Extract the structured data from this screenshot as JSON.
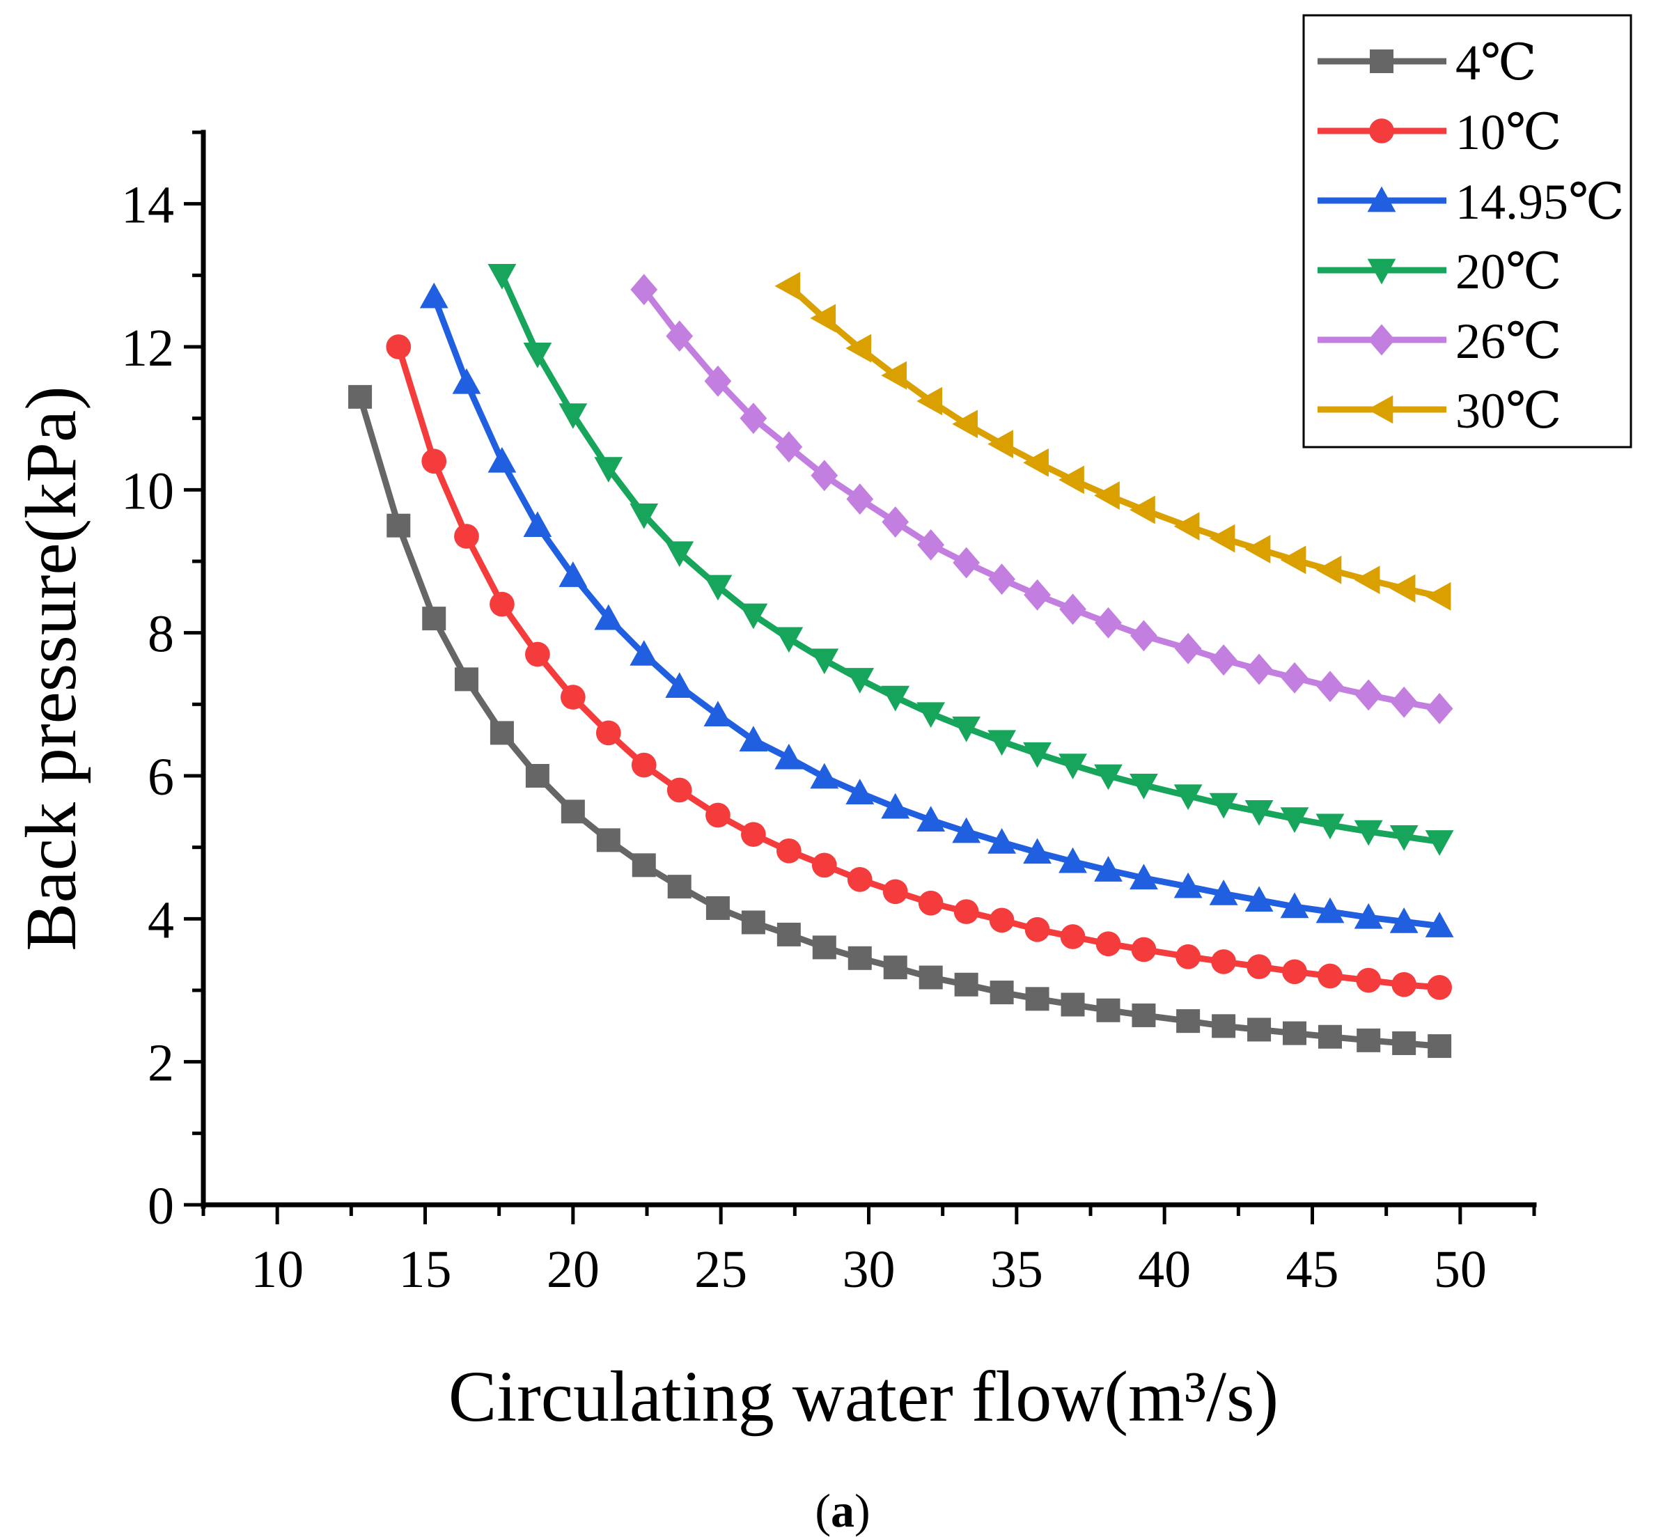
{
  "caption": {
    "open": "(",
    "letter": "a",
    "close": ")"
  },
  "chart_data": {
    "type": "line",
    "title": "",
    "xlabel": "Circulating water flow(m³/s)",
    "ylabel": "Back pressure(kPa)",
    "xlim": [
      7.5,
      52.5
    ],
    "ylim": [
      0,
      15
    ],
    "x_ticks": [
      10,
      15,
      20,
      25,
      30,
      35,
      40,
      45,
      50
    ],
    "y_ticks": [
      0,
      2,
      4,
      6,
      8,
      10,
      12,
      14
    ],
    "grid": false,
    "legend_position": "top-right",
    "series": [
      {
        "name": "4℃",
        "color": "#666666",
        "marker": "square",
        "points": [
          [
            12.8,
            11.3
          ],
          [
            14.1,
            9.5
          ],
          [
            15.3,
            8.2
          ],
          [
            16.4,
            7.35
          ],
          [
            17.6,
            6.6
          ],
          [
            18.8,
            6.0
          ],
          [
            20.0,
            5.5
          ],
          [
            21.2,
            5.1
          ],
          [
            22.4,
            4.75
          ],
          [
            23.6,
            4.45
          ],
          [
            24.9,
            4.15
          ],
          [
            26.1,
            3.95
          ],
          [
            27.3,
            3.78
          ],
          [
            28.5,
            3.6
          ],
          [
            29.7,
            3.45
          ],
          [
            30.9,
            3.32
          ],
          [
            32.1,
            3.18
          ],
          [
            33.3,
            3.08
          ],
          [
            34.5,
            2.97
          ],
          [
            35.7,
            2.88
          ],
          [
            36.9,
            2.8
          ],
          [
            38.1,
            2.72
          ],
          [
            39.3,
            2.65
          ],
          [
            40.8,
            2.57
          ],
          [
            42.0,
            2.5
          ],
          [
            43.2,
            2.45
          ],
          [
            44.4,
            2.4
          ],
          [
            45.6,
            2.35
          ],
          [
            46.9,
            2.3
          ],
          [
            48.1,
            2.26
          ],
          [
            49.3,
            2.22
          ]
        ]
      },
      {
        "name": "10℃",
        "color": "#f53c3c",
        "marker": "circle",
        "points": [
          [
            14.1,
            12.0
          ],
          [
            15.3,
            10.4
          ],
          [
            16.4,
            9.35
          ],
          [
            17.6,
            8.4
          ],
          [
            18.8,
            7.7
          ],
          [
            20.0,
            7.1
          ],
          [
            21.2,
            6.6
          ],
          [
            22.4,
            6.15
          ],
          [
            23.6,
            5.8
          ],
          [
            24.9,
            5.45
          ],
          [
            26.1,
            5.18
          ],
          [
            27.3,
            4.95
          ],
          [
            28.5,
            4.75
          ],
          [
            29.7,
            4.55
          ],
          [
            30.9,
            4.38
          ],
          [
            32.1,
            4.22
          ],
          [
            33.3,
            4.1
          ],
          [
            34.5,
            3.98
          ],
          [
            35.7,
            3.85
          ],
          [
            36.9,
            3.75
          ],
          [
            38.1,
            3.65
          ],
          [
            39.3,
            3.57
          ],
          [
            40.8,
            3.47
          ],
          [
            42.0,
            3.4
          ],
          [
            43.2,
            3.33
          ],
          [
            44.4,
            3.26
          ],
          [
            45.6,
            3.2
          ],
          [
            46.9,
            3.14
          ],
          [
            48.1,
            3.08
          ],
          [
            49.3,
            3.04
          ]
        ]
      },
      {
        "name": "14.95℃",
        "color": "#1f5fe0",
        "marker": "triangle-up",
        "points": [
          [
            15.3,
            12.7
          ],
          [
            16.4,
            11.5
          ],
          [
            17.6,
            10.4
          ],
          [
            18.8,
            9.5
          ],
          [
            20.0,
            8.8
          ],
          [
            21.2,
            8.2
          ],
          [
            22.4,
            7.7
          ],
          [
            23.6,
            7.25
          ],
          [
            24.9,
            6.85
          ],
          [
            26.1,
            6.5
          ],
          [
            27.3,
            6.25
          ],
          [
            28.5,
            5.98
          ],
          [
            29.7,
            5.76
          ],
          [
            30.9,
            5.56
          ],
          [
            32.1,
            5.38
          ],
          [
            33.3,
            5.22
          ],
          [
            34.5,
            5.07
          ],
          [
            35.7,
            4.93
          ],
          [
            36.9,
            4.8
          ],
          [
            38.1,
            4.68
          ],
          [
            39.3,
            4.57
          ],
          [
            40.8,
            4.45
          ],
          [
            42.0,
            4.35
          ],
          [
            43.2,
            4.26
          ],
          [
            44.4,
            4.17
          ],
          [
            45.6,
            4.1
          ],
          [
            46.9,
            4.02
          ],
          [
            48.1,
            3.96
          ],
          [
            49.3,
            3.9
          ]
        ]
      },
      {
        "name": "20℃",
        "color": "#17a55c",
        "marker": "triangle-down",
        "points": [
          [
            17.6,
            13.0
          ],
          [
            18.8,
            11.9
          ],
          [
            20.0,
            11.05
          ],
          [
            21.2,
            10.3
          ],
          [
            22.4,
            9.65
          ],
          [
            23.6,
            9.12
          ],
          [
            24.9,
            8.65
          ],
          [
            26.1,
            8.25
          ],
          [
            27.3,
            7.92
          ],
          [
            28.5,
            7.62
          ],
          [
            29.7,
            7.35
          ],
          [
            30.9,
            7.1
          ],
          [
            32.1,
            6.87
          ],
          [
            33.3,
            6.67
          ],
          [
            34.5,
            6.48
          ],
          [
            35.7,
            6.31
          ],
          [
            36.9,
            6.15
          ],
          [
            38.1,
            6.0
          ],
          [
            39.3,
            5.87
          ],
          [
            40.8,
            5.72
          ],
          [
            42.0,
            5.6
          ],
          [
            43.2,
            5.5
          ],
          [
            44.4,
            5.4
          ],
          [
            45.6,
            5.31
          ],
          [
            46.9,
            5.22
          ],
          [
            48.1,
            5.15
          ],
          [
            49.3,
            5.08
          ]
        ]
      },
      {
        "name": "26℃",
        "color": "#c27fe0",
        "marker": "diamond",
        "points": [
          [
            22.4,
            12.8
          ],
          [
            23.6,
            12.15
          ],
          [
            24.9,
            11.52
          ],
          [
            26.1,
            11.0
          ],
          [
            27.3,
            10.6
          ],
          [
            28.5,
            10.2
          ],
          [
            29.7,
            9.87
          ],
          [
            30.9,
            9.55
          ],
          [
            32.1,
            9.23
          ],
          [
            33.3,
            8.98
          ],
          [
            34.5,
            8.75
          ],
          [
            35.7,
            8.53
          ],
          [
            36.9,
            8.33
          ],
          [
            38.1,
            8.14
          ],
          [
            39.3,
            7.96
          ],
          [
            40.8,
            7.78
          ],
          [
            42.0,
            7.62
          ],
          [
            43.2,
            7.49
          ],
          [
            44.4,
            7.37
          ],
          [
            45.6,
            7.25
          ],
          [
            46.9,
            7.13
          ],
          [
            48.1,
            7.03
          ],
          [
            49.3,
            6.94
          ]
        ]
      },
      {
        "name": "30℃",
        "color": "#d9a000",
        "marker": "triangle-left",
        "points": [
          [
            27.3,
            12.85
          ],
          [
            28.5,
            12.4
          ],
          [
            29.7,
            11.98
          ],
          [
            30.9,
            11.6
          ],
          [
            32.1,
            11.24
          ],
          [
            33.3,
            10.92
          ],
          [
            34.5,
            10.64
          ],
          [
            35.7,
            10.38
          ],
          [
            36.9,
            10.14
          ],
          [
            38.1,
            9.92
          ],
          [
            39.3,
            9.72
          ],
          [
            40.8,
            9.49
          ],
          [
            42.0,
            9.32
          ],
          [
            43.2,
            9.17
          ],
          [
            44.4,
            9.02
          ],
          [
            45.6,
            8.88
          ],
          [
            46.9,
            8.74
          ],
          [
            48.1,
            8.62
          ],
          [
            49.3,
            8.51
          ]
        ]
      }
    ]
  }
}
